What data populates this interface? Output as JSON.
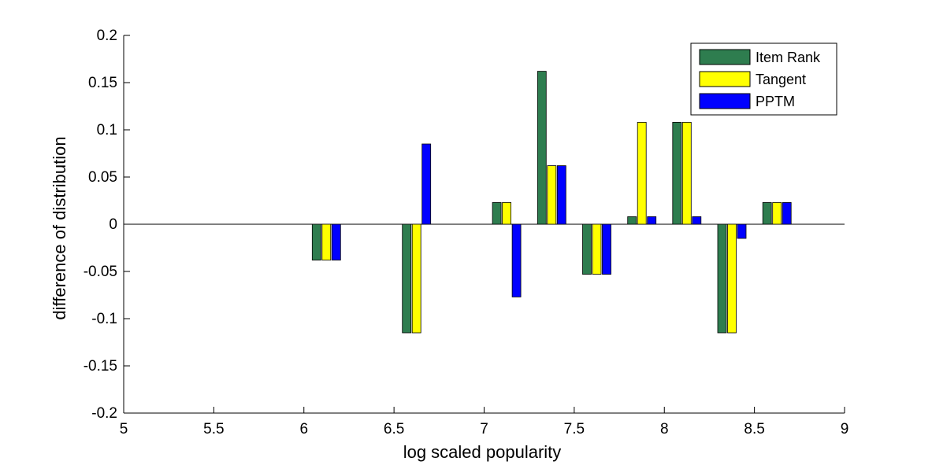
{
  "chart_data": {
    "type": "bar",
    "xlabel": "log scaled popularity",
    "ylabel": "difference of distribution",
    "xlim": [
      5,
      9
    ],
    "ylim": [
      -0.2,
      0.2
    ],
    "x_ticks": [
      5,
      5.5,
      6,
      6.5,
      7,
      7.5,
      8,
      8.5,
      9
    ],
    "y_ticks": [
      -0.2,
      -0.15,
      -0.1,
      -0.05,
      0,
      0.05,
      0.1,
      0.15,
      0.2
    ],
    "x_tick_labels": [
      "5",
      "5.5",
      "6",
      "6.5",
      "7",
      "7.5",
      "8",
      "8.5",
      "9"
    ],
    "y_tick_labels": [
      "-0.2",
      "-0.15",
      "-0.1",
      "-0.05",
      "0",
      "0.05",
      "0.1",
      "0.15",
      "0.2"
    ],
    "x": [
      6.125,
      6.625,
      7.125,
      7.375,
      7.625,
      7.875,
      8.125,
      8.375,
      8.625
    ],
    "series": [
      {
        "name": "Item Rank",
        "color": "#2e7d4f",
        "values": [
          -0.038,
          -0.115,
          0.023,
          0.162,
          -0.053,
          0.008,
          0.108,
          -0.115,
          0.023
        ]
      },
      {
        "name": "Tangent",
        "color": "#ffff00",
        "values": [
          -0.038,
          -0.115,
          0.023,
          0.062,
          -0.053,
          0.108,
          0.108,
          -0.115,
          0.023
        ]
      },
      {
        "name": "PPTM",
        "color": "#0000ff",
        "values": [
          -0.038,
          0.085,
          -0.077,
          0.062,
          -0.053,
          0.008,
          0.008,
          -0.015,
          0.023
        ]
      }
    ],
    "legend_position": "top-right",
    "grid": false
  }
}
